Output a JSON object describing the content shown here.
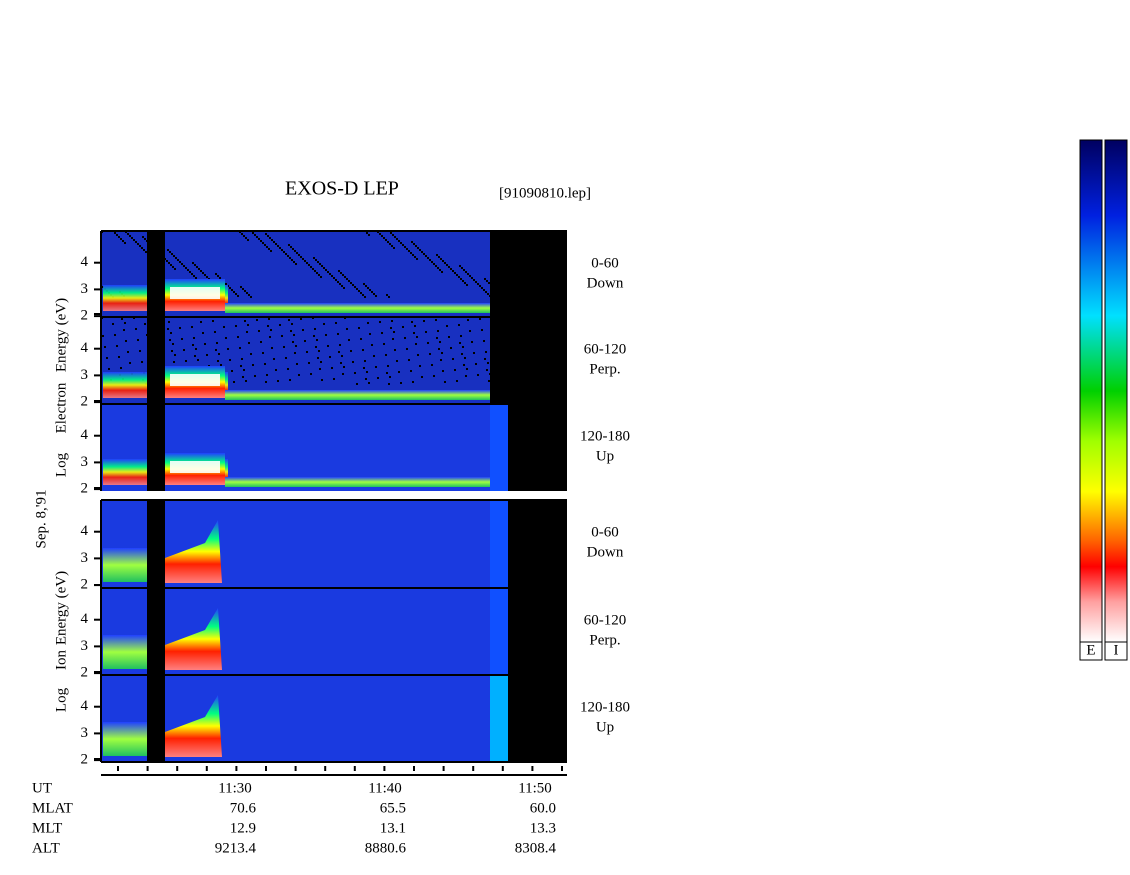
{
  "header": {
    "title": "EXOS-D LEP",
    "file": "[91090810.lep]"
  },
  "date": "Sep. 8,'91",
  "groups": [
    {
      "words": [
        "Log",
        "Electron",
        "Energy (eV)"
      ]
    },
    {
      "words": [
        "Log",
        "Ion",
        "Energy (eV)"
      ]
    }
  ],
  "panels": [
    {
      "angle": "0-60",
      "dir": "Down",
      "ticks": [
        "2",
        "3",
        "4"
      ]
    },
    {
      "angle": "60-120",
      "dir": "Perp.",
      "ticks": [
        "2",
        "3",
        "4"
      ]
    },
    {
      "angle": "120-180",
      "dir": "Up",
      "ticks": [
        "2",
        "3",
        "4"
      ]
    },
    {
      "angle": "0-60",
      "dir": "Down",
      "ticks": [
        "2",
        "3",
        "4"
      ]
    },
    {
      "angle": "60-120",
      "dir": "Perp.",
      "ticks": [
        "2",
        "3",
        "4"
      ]
    },
    {
      "angle": "120-180",
      "dir": "Up",
      "ticks": [
        "2",
        "3",
        "4"
      ]
    }
  ],
  "rows": [
    {
      "name": "UT",
      "values": [
        "11:30",
        "11:40",
        "11:50"
      ]
    },
    {
      "name": "MLAT",
      "values": [
        "70.6",
        "65.5",
        "60.0"
      ]
    },
    {
      "name": "MLT",
      "values": [
        "12.9",
        "13.1",
        "13.3"
      ]
    },
    {
      "name": "ALT",
      "values": [
        "9213.4",
        "8880.6",
        "8308.4"
      ]
    }
  ],
  "colorbars": [
    "E",
    "I"
  ]
}
